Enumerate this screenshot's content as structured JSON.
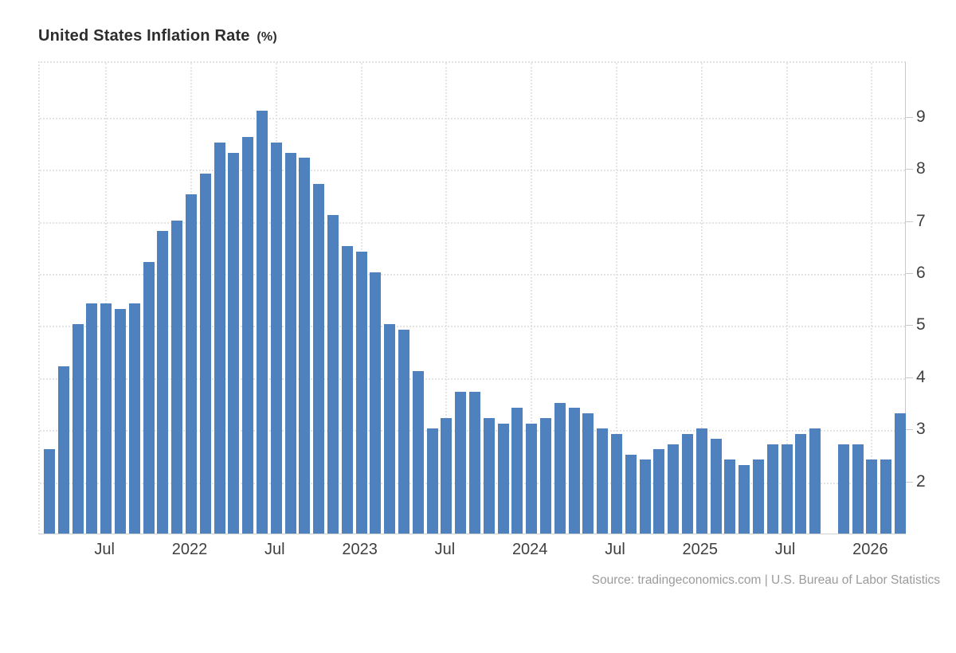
{
  "header": {
    "title": "United States Inflation Rate",
    "title_unit": "(%)"
  },
  "footer": {
    "source": "Source: tradingeconomics.com | U.S. Bureau of Labor Statistics"
  },
  "chart_data": {
    "type": "bar",
    "title": "United States Inflation Rate (%)",
    "xlabel": "",
    "ylabel": "Inflation Rate (%)",
    "bar_color": "#4e81bd",
    "grid": true,
    "legend": false,
    "categories": [
      "2021-03",
      "2021-04",
      "2021-05",
      "2021-06",
      "2021-07",
      "2021-08",
      "2021-09",
      "2021-10",
      "2021-11",
      "2021-12",
      "2022-01",
      "2022-02",
      "2022-03",
      "2022-04",
      "2022-05",
      "2022-06",
      "2022-07",
      "2022-08",
      "2022-09",
      "2022-10",
      "2022-11",
      "2022-12",
      "2023-01",
      "2023-02",
      "2023-03",
      "2023-04",
      "2023-05",
      "2023-06",
      "2023-07",
      "2023-08",
      "2023-09",
      "2023-10",
      "2023-11",
      "2023-12",
      "2024-01",
      "2024-02",
      "2024-03",
      "2024-04",
      "2024-05",
      "2024-06",
      "2024-07",
      "2024-08",
      "2024-09",
      "2024-10",
      "2024-11",
      "2024-12",
      "2025-01",
      "2025-02",
      "2025-03",
      "2025-04",
      "2025-05",
      "2025-06",
      "2025-07",
      "2025-08",
      "2025-09",
      "2025-10",
      "2025-11",
      "2025-12",
      "2026-01",
      "2026-02",
      "2026-03"
    ],
    "values": [
      2.6,
      4.2,
      5.0,
      5.4,
      5.4,
      5.3,
      5.4,
      6.2,
      6.8,
      7.0,
      7.5,
      7.9,
      8.5,
      8.3,
      8.6,
      9.1,
      8.5,
      8.3,
      8.2,
      7.7,
      7.1,
      6.5,
      6.4,
      6.0,
      5.0,
      4.9,
      4.1,
      3.0,
      3.2,
      3.7,
      3.7,
      3.2,
      3.1,
      3.4,
      3.1,
      3.2,
      3.5,
      3.4,
      3.3,
      3.0,
      2.9,
      2.5,
      2.4,
      2.6,
      2.7,
      2.9,
      3.0,
      2.8,
      2.4,
      2.3,
      2.4,
      2.7,
      2.7,
      2.9,
      3.0,
      null,
      2.7,
      2.7,
      2.4,
      2.4,
      3.3
    ],
    "x_ticks": [
      {
        "index": 4,
        "label": "Jul"
      },
      {
        "index": 10,
        "label": "2022"
      },
      {
        "index": 16,
        "label": "Jul"
      },
      {
        "index": 22,
        "label": "2023"
      },
      {
        "index": 28,
        "label": "Jul"
      },
      {
        "index": 34,
        "label": "2024"
      },
      {
        "index": 40,
        "label": "Jul"
      },
      {
        "index": 46,
        "label": "2025"
      },
      {
        "index": 52,
        "label": "Jul"
      },
      {
        "index": 58,
        "label": "2026"
      }
    ],
    "y_axis": {
      "position": "right",
      "min": 0.985,
      "max": 10.068,
      "tick_labels": [
        2,
        3,
        4,
        5,
        6,
        7,
        8,
        9
      ]
    }
  }
}
